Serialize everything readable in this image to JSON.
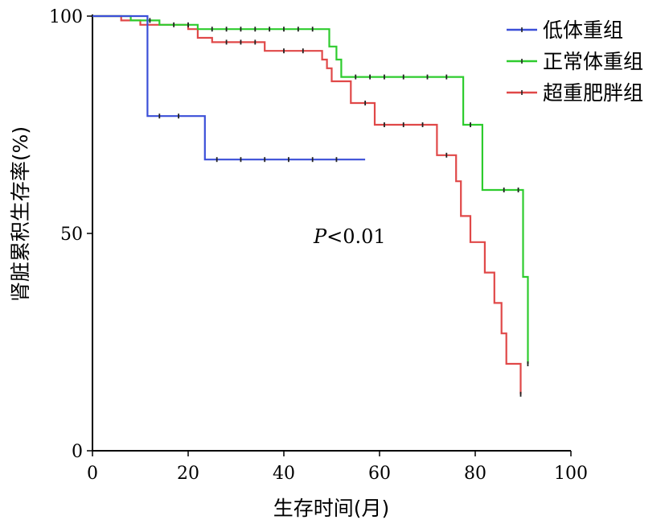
{
  "chart_data": {
    "type": "line",
    "subtype": "kaplan-meier step curve",
    "title": "",
    "xlabel": "生存时间(月)",
    "ylabel": "肾脏累积生存率(%)",
    "xlim": [
      0,
      100
    ],
    "ylim": [
      0,
      100
    ],
    "x_ticks": [
      "0",
      "20",
      "40",
      "60",
      "80",
      "100"
    ],
    "y_ticks": [
      "0",
      "50",
      "100"
    ],
    "grid": false,
    "legend_position": "top-right",
    "annotation": {
      "italic": "P",
      "rest": "<0.01"
    },
    "series": [
      {
        "name": "低体重组",
        "color": "#3b4fd8",
        "steps": [
          [
            0,
            100
          ],
          [
            11.5,
            100
          ],
          [
            11.5,
            77
          ],
          [
            23.5,
            77
          ],
          [
            23.5,
            67
          ],
          [
            57,
            67
          ]
        ],
        "censored": [
          [
            14,
            77
          ],
          [
            18,
            77
          ],
          [
            26,
            67
          ],
          [
            31,
            67
          ],
          [
            36,
            67
          ],
          [
            41,
            67
          ],
          [
            46,
            67
          ],
          [
            51,
            67
          ]
        ]
      },
      {
        "name": "正常体重组",
        "color": "#2ecc2e",
        "steps": [
          [
            0,
            100
          ],
          [
            8,
            100
          ],
          [
            8,
            99
          ],
          [
            14,
            99
          ],
          [
            14,
            98
          ],
          [
            22,
            98
          ],
          [
            22,
            97
          ],
          [
            49.5,
            97
          ],
          [
            49.5,
            93
          ],
          [
            51,
            93
          ],
          [
            51,
            90
          ],
          [
            52,
            90
          ],
          [
            52,
            86
          ],
          [
            77.5,
            86
          ],
          [
            77.5,
            75
          ],
          [
            81.5,
            75
          ],
          [
            81.5,
            60
          ],
          [
            90,
            60
          ],
          [
            90,
            40
          ],
          [
            91,
            40
          ],
          [
            91,
            20
          ]
        ],
        "censored": [
          [
            12,
            99
          ],
          [
            17,
            98
          ],
          [
            20,
            98
          ],
          [
            25,
            97
          ],
          [
            28,
            97
          ],
          [
            31,
            97
          ],
          [
            34,
            97
          ],
          [
            37,
            97
          ],
          [
            40,
            97
          ],
          [
            43,
            97
          ],
          [
            46,
            97
          ],
          [
            55,
            86
          ],
          [
            58,
            86
          ],
          [
            61,
            86
          ],
          [
            65,
            86
          ],
          [
            70,
            86
          ],
          [
            74,
            86
          ],
          [
            79,
            75
          ],
          [
            86,
            60
          ],
          [
            89,
            60
          ],
          [
            91,
            20
          ]
        ]
      },
      {
        "name": "超重肥胖组",
        "color": "#e04848",
        "steps": [
          [
            0,
            100
          ],
          [
            6,
            100
          ],
          [
            6,
            99
          ],
          [
            10,
            99
          ],
          [
            10,
            98
          ],
          [
            20,
            98
          ],
          [
            20,
            97
          ],
          [
            22,
            97
          ],
          [
            22,
            95
          ],
          [
            25,
            95
          ],
          [
            25,
            94
          ],
          [
            36,
            94
          ],
          [
            36,
            92
          ],
          [
            48,
            92
          ],
          [
            48,
            90
          ],
          [
            49,
            90
          ],
          [
            49,
            88
          ],
          [
            50,
            88
          ],
          [
            50,
            85
          ],
          [
            54,
            85
          ],
          [
            54,
            80
          ],
          [
            59,
            80
          ],
          [
            59,
            75
          ],
          [
            72,
            75
          ],
          [
            72,
            68
          ],
          [
            76,
            68
          ],
          [
            76,
            62
          ],
          [
            77,
            62
          ],
          [
            77,
            54
          ],
          [
            79,
            54
          ],
          [
            79,
            48
          ],
          [
            82,
            48
          ],
          [
            82,
            41
          ],
          [
            84,
            41
          ],
          [
            84,
            34
          ],
          [
            85.5,
            34
          ],
          [
            85.5,
            27
          ],
          [
            86.5,
            27
          ],
          [
            86.5,
            20
          ],
          [
            89.5,
            20
          ],
          [
            89.5,
            13
          ]
        ],
        "censored": [
          [
            28,
            94
          ],
          [
            31,
            94
          ],
          [
            34,
            94
          ],
          [
            40,
            92
          ],
          [
            44,
            92
          ],
          [
            57,
            80
          ],
          [
            61,
            75
          ],
          [
            65,
            75
          ],
          [
            69,
            75
          ],
          [
            74,
            68
          ],
          [
            89.5,
            13
          ]
        ]
      }
    ]
  }
}
